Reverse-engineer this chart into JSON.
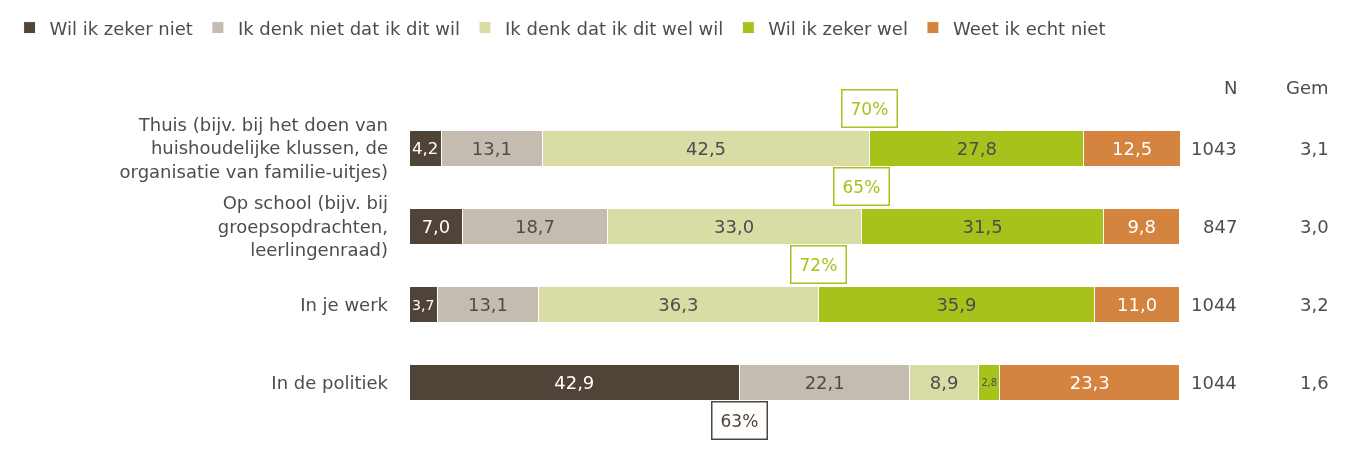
{
  "chart_data": {
    "type": "bar",
    "orientation": "horizontal",
    "stacked": true,
    "legend": "top",
    "categories": [
      "Thuis (bijv. bij het doen van huishoudelijke klussen, de organisatie van familie-uitjes)",
      "Op school (bijv. bij groepsopdrachten, leerlingenraad)",
      "In je werk",
      "In de politiek"
    ],
    "series": [
      {
        "name": "Wil ik zeker niet",
        "color": "#4f4437",
        "values": [
          4.2,
          7.0,
          3.7,
          42.9
        ],
        "value_labels": [
          "4,2",
          "7,0",
          "3,7",
          "42,9"
        ]
      },
      {
        "name": "Ik denk niet dat ik dit wil",
        "color": "#c5bcb1",
        "values": [
          13.1,
          18.7,
          13.1,
          22.1
        ],
        "value_labels": [
          "13,1",
          "18,7",
          "13,1",
          "22,1"
        ]
      },
      {
        "name": "Ik denk dat ik dit wel wil",
        "color": "#d9dca5",
        "values": [
          42.5,
          33.0,
          36.3,
          8.9
        ],
        "value_labels": [
          "42,5",
          "33,0",
          "36,3",
          "8,9"
        ]
      },
      {
        "name": "Wil ik zeker wel",
        "color": "#a8c21c",
        "values": [
          27.8,
          31.5,
          35.9,
          2.8
        ],
        "value_labels": [
          "27,8",
          "31,5",
          "35,9",
          "2,8"
        ]
      },
      {
        "name": "Weet ik echt niet",
        "color": "#d4843f",
        "values": [
          12.5,
          9.8,
          11.0,
          23.3
        ],
        "value_labels": [
          "12,5",
          "9,8",
          "11,0",
          "23,3"
        ]
      }
    ],
    "annotations": [
      "N",
      "Gem",
      {
        "text": "70%",
        "x": 59.8,
        "y": "Thuis (bijv. bij het doen van huishoudelijke klussen, de organisatie van familie-uitjes)"
      },
      {
        "text": "65%",
        "x": 58.7,
        "y": "Op school (bijv. bij groepsopdrachten, leerlingenraad)"
      },
      {
        "text": "72%",
        "x": 53.1,
        "y": "In je werk"
      },
      {
        "text": "63%",
        "x": 42.9,
        "y": "In de politiek"
      },
      "1043",
      "3,1",
      "847",
      "3,0",
      "1044",
      "3,2",
      "1044",
      "1,6"
    ]
  }
}
